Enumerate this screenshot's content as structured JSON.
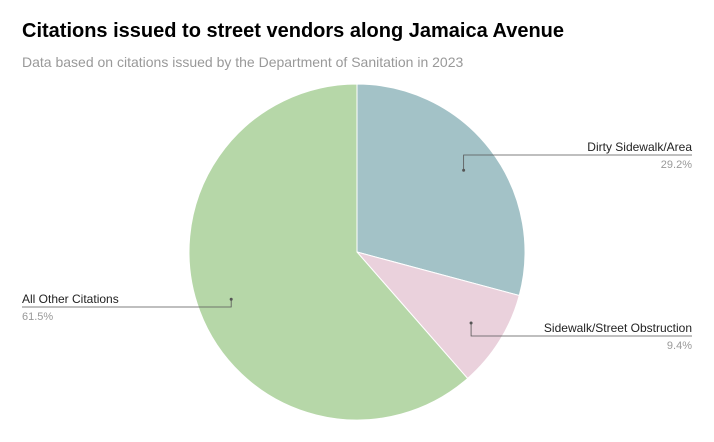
{
  "chart_data": {
    "type": "pie",
    "title": "Citations issued to street vendors along Jamaica Avenue",
    "subtitle": "Data based on citations issued by the Department of Sanitation in 2023",
    "slices": [
      {
        "label": "Dirty Sidewalk/Area",
        "value": 29.2,
        "value_label": "29.2%",
        "color": "#a3c2c7"
      },
      {
        "label": "Sidewalk/Street Obstruction",
        "value": 9.4,
        "value_label": "9.4%",
        "color": "#ead1dc"
      },
      {
        "label": "All Other Citations",
        "value": 61.5,
        "value_label": "61.5%",
        "color": "#b6d7a8"
      }
    ],
    "start_angle": "12 o'clock",
    "direction": "clockwise",
    "legend": "none"
  }
}
